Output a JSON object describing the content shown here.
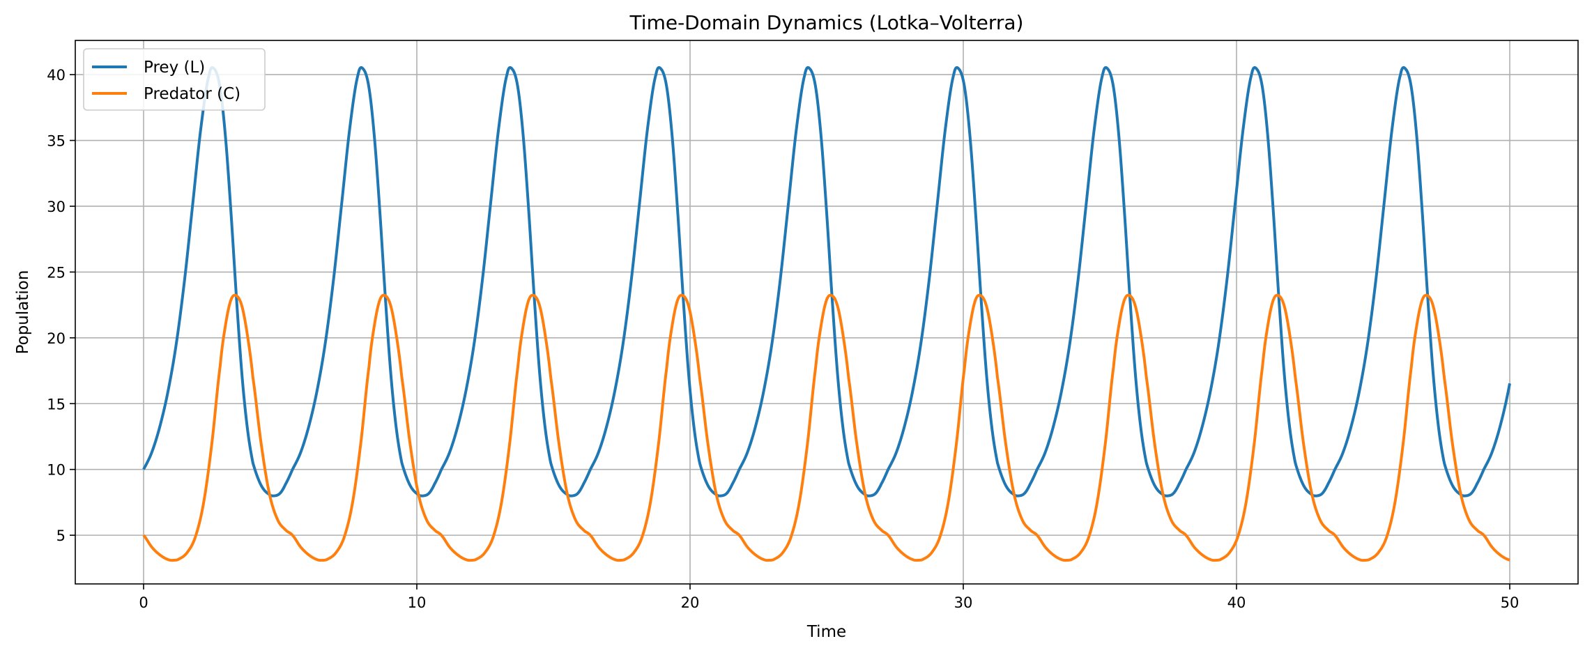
{
  "chart_data": {
    "type": "line",
    "title": "Time-Domain Dynamics (Lotka–Volterra)",
    "xlabel": "Time",
    "ylabel": "Population",
    "xlim": [
      -2.5,
      52.5
    ],
    "ylim": [
      1.3,
      42.6
    ],
    "xticks": [
      0,
      10,
      20,
      30,
      40,
      50
    ],
    "yticks": [
      5,
      10,
      15,
      20,
      25,
      30,
      35,
      40
    ],
    "grid": true,
    "legend_position": "top-left",
    "colors": {
      "prey": "#1f77b4",
      "predator": "#ff7f0e",
      "grid": "#b0b0b0"
    },
    "series": [
      {
        "name": "Prey (L)",
        "period": 5.45,
        "x": [
          0,
          0.3,
          0.6,
          0.9,
          1.2,
          1.5,
          1.8,
          2.1,
          2.4,
          2.6,
          2.8,
          3.0,
          3.2,
          3.4,
          3.6,
          3.8,
          4.0,
          4.3,
          4.6,
          4.8,
          5.0,
          5.2,
          5.45
        ],
        "values": [
          10,
          11.3,
          13.3,
          16.0,
          19.6,
          24.4,
          30.2,
          36.0,
          40.0,
          40.4,
          39.0,
          35.2,
          29.5,
          23.0,
          17.2,
          13.1,
          10.5,
          8.8,
          8.1,
          8.0,
          8.2,
          8.9,
          10.0
        ]
      },
      {
        "name": "Predator (C)",
        "period": 5.45,
        "x": [
          0,
          0.3,
          0.6,
          0.9,
          1.1,
          1.3,
          1.6,
          1.9,
          2.2,
          2.5,
          2.8,
          3.0,
          3.2,
          3.4,
          3.6,
          3.8,
          4.0,
          4.3,
          4.6,
          4.9,
          5.2,
          5.45
        ],
        "values": [
          5.0,
          4.1,
          3.5,
          3.15,
          3.1,
          3.2,
          3.7,
          4.9,
          7.5,
          12.0,
          17.8,
          21.0,
          22.9,
          23.2,
          22.4,
          20.2,
          17.0,
          12.0,
          8.2,
          6.2,
          5.4,
          5.0
        ]
      }
    ]
  }
}
